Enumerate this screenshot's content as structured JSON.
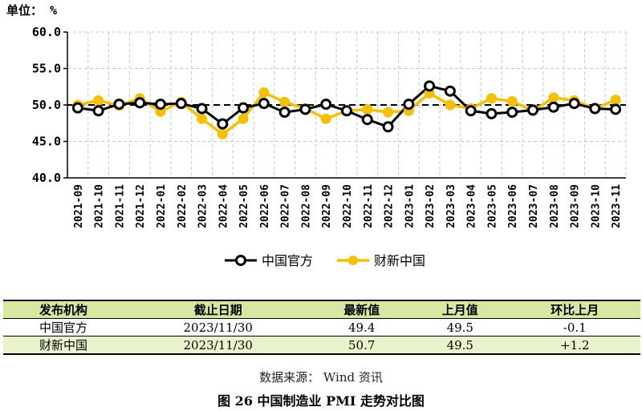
{
  "chart_data": {
    "type": "line",
    "unit_label": "单位： %",
    "x": [
      "2021-09",
      "2021-10",
      "2021-11",
      "2021-12",
      "2022-01",
      "2022-02",
      "2022-03",
      "2022-04",
      "2022-05",
      "2022-06",
      "2022-07",
      "2022-08",
      "2022-09",
      "2022-10",
      "2022-11",
      "2022-12",
      "2023-01",
      "2023-02",
      "2023-03",
      "2023-04",
      "2023-05",
      "2023-06",
      "2023-07",
      "2023-08",
      "2023-09",
      "2023-10",
      "2023-11"
    ],
    "series": [
      {
        "name": "中国官方",
        "color": "#000000",
        "values": [
          49.6,
          49.2,
          50.1,
          50.3,
          50.1,
          50.2,
          49.5,
          47.4,
          49.6,
          50.2,
          49.0,
          49.4,
          50.1,
          49.2,
          48.0,
          47.0,
          50.1,
          52.6,
          51.9,
          49.2,
          48.8,
          49.0,
          49.3,
          49.7,
          50.2,
          49.5,
          49.4
        ]
      },
      {
        "name": "财新中国",
        "color": "#f5c000",
        "values": [
          50.0,
          50.6,
          49.9,
          50.9,
          49.1,
          50.4,
          48.1,
          46.0,
          48.1,
          51.7,
          50.4,
          49.5,
          48.1,
          49.2,
          49.4,
          49.0,
          49.2,
          51.6,
          50.0,
          49.5,
          50.9,
          50.5,
          49.2,
          51.0,
          50.6,
          49.5,
          50.7
        ]
      }
    ],
    "ylim": [
      40,
      60
    ],
    "y_ticks": [
      "40.0",
      "45.0",
      "50.0",
      "55.0",
      "60.0"
    ],
    "reference_line": 50,
    "grid": true,
    "legend_position": "bottom-center"
  },
  "table": {
    "headers": [
      "发布机构",
      "截止日期",
      "最新值",
      "上月值",
      "环比上月"
    ],
    "rows": [
      [
        "中国官方",
        "2023/11/30",
        "49.4",
        "49.5",
        "-0.1"
      ],
      [
        "财新中国",
        "2023/11/30",
        "50.7",
        "49.5",
        "+1.2"
      ]
    ]
  },
  "source": "数据来源： Wind 资讯",
  "caption": "图 26   中国制造业 PMI 走势对比图"
}
